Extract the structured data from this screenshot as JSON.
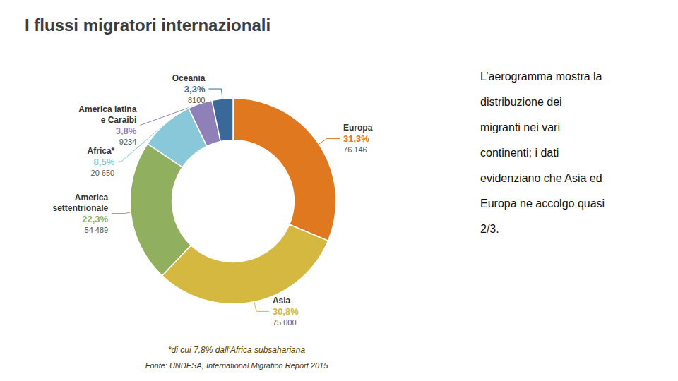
{
  "chart_data": {
    "type": "pie",
    "title": "I flussi migratori internazionali",
    "categories": [
      "Europa",
      "Asia",
      "America\nsettentrionale",
      "Africa*",
      "America latina\ne Caraibi",
      "Oceania"
    ],
    "values": [
      31.3,
      30.8,
      22.3,
      8.5,
      3.8,
      3.3
    ],
    "value_labels": [
      "31,3%",
      "30,8%",
      "22,3%",
      "8,5%",
      "3,8%",
      "3,3%"
    ],
    "counts": [
      76146,
      75000,
      54489,
      20650,
      9234,
      8100
    ],
    "count_labels": [
      "76 146",
      "75 000",
      "54 489",
      "20 650",
      "9234",
      "8100"
    ],
    "colors": [
      "#e07820",
      "#d4b840",
      "#90b060",
      "#88c8d8",
      "#9080b8",
      "#3a6898"
    ],
    "data_labels": true,
    "legend": "none",
    "footnote": "*di cui 7,8% dall’Africa subsahariana",
    "source": "Fonte: UNDESA, International Migration Report 2015",
    "description": [
      "L’aerogramma mostra la",
      "distribuzione dei",
      "migranti nei vari",
      "continenti; i dati",
      "evidenziano che Asia ed",
      "Europa ne accolgo quasi",
      "2/3."
    ]
  }
}
